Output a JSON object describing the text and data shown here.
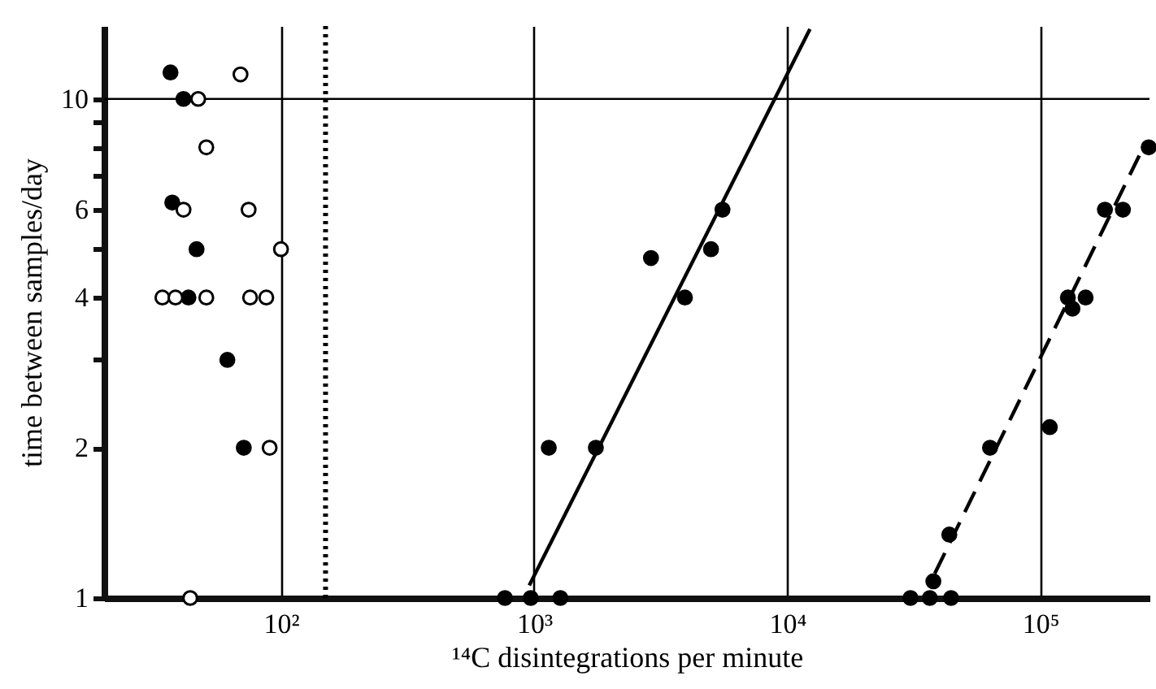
{
  "chart_data": {
    "type": "scatter",
    "xlabel": "¹⁴C disintegrations per minute",
    "ylabel": "time between samples/day",
    "log": "xy",
    "xlim": [
      20,
      270000
    ],
    "ylim": [
      1,
      14
    ],
    "xticks": [
      {
        "value": 100,
        "label": "10²"
      },
      {
        "value": 1000,
        "label": "10³"
      },
      {
        "value": 10000,
        "label": "10⁴"
      },
      {
        "value": 100000,
        "label": "10⁵"
      }
    ],
    "yticks": [
      1,
      2,
      {
        "value": 3,
        "label": null
      },
      4,
      {
        "value": 5,
        "label": null
      },
      6,
      {
        "value": 7,
        "label": null
      },
      {
        "value": 8,
        "label": null
      },
      {
        "value": 9,
        "label": null
      },
      10
    ],
    "grid": "x",
    "ref_lines": [
      {
        "axis": "y",
        "value": 10,
        "line_style": "solid"
      },
      {
        "axis": "x",
        "value": 150,
        "line_style": "dotted"
      }
    ],
    "series": [
      {
        "marker": "circle",
        "color": "#000000",
        "x": [
          36.6,
          41.2,
          37.2,
          46.4,
          43.1,
          61.4,
          71.3
        ],
        "values": [
          11.3,
          10,
          6.2,
          5,
          4,
          3,
          2
        ]
      },
      {
        "marker": "circle",
        "color": "#ffffff",
        "x": [
          69.2,
          47.1,
          50.7,
          41.2,
          74.5,
          100,
          34,
          38.3,
          50.7,
          75.5,
          87.5,
          90.2,
          43.8
        ],
        "values": [
          11.2,
          10,
          8,
          6,
          6,
          5,
          4,
          4,
          4,
          4,
          4,
          2,
          1
        ]
      },
      {
        "marker": "circle",
        "color": "#000000",
        "x": [
          767,
          970,
          1270,
          1143,
          1754,
          2896,
          3944,
          5000,
          5550
        ],
        "values": [
          1,
          1,
          1,
          2,
          2,
          4.8,
          4,
          5,
          6
        ]
      },
      {
        "marker": "circle",
        "color": "#000000",
        "x": [
          30700,
          36600,
          44400,
          37800,
          43700,
          63300,
          109000,
          128500,
          134000,
          151000,
          180000,
          212000,
          268000
        ],
        "values": [
          1,
          1,
          1,
          1.08,
          1.34,
          2,
          2.2,
          4,
          3.8,
          4,
          6,
          6,
          8
        ]
      },
      {
        "type": "line",
        "line_style": "solid",
        "color": "#000000",
        "x": [
          957,
          12300
        ],
        "values": [
          1.06,
          13.8
        ]
      },
      {
        "type": "line",
        "line_style": "dashed",
        "color": "#000000",
        "x": [
          38300,
          246000
        ],
        "values": [
          1.12,
          7.7
        ]
      }
    ]
  }
}
